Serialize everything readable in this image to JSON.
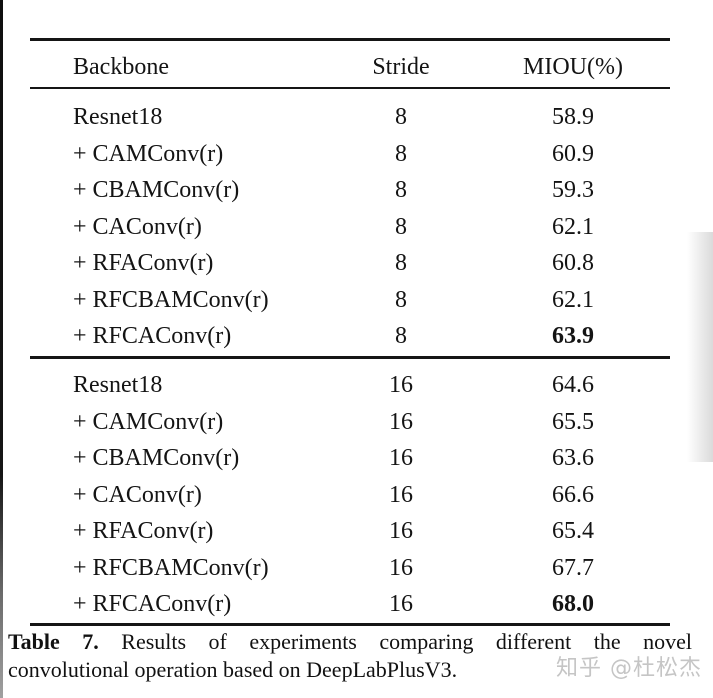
{
  "table": {
    "headers": {
      "backbone": "Backbone",
      "stride": "Stride",
      "miou": "MIOU(%)"
    },
    "groups": [
      {
        "rows": [
          {
            "backbone": "Resnet18",
            "stride": "8",
            "miou": "58.9",
            "best": false
          },
          {
            "backbone": "+ CAMConv(r)",
            "stride": "8",
            "miou": "60.9",
            "best": false
          },
          {
            "backbone": "+ CBAMConv(r)",
            "stride": "8",
            "miou": "59.3",
            "best": false
          },
          {
            "backbone": "+ CAConv(r)",
            "stride": "8",
            "miou": "62.1",
            "best": false
          },
          {
            "backbone": "+ RFAConv(r)",
            "stride": "8",
            "miou": "60.8",
            "best": false
          },
          {
            "backbone": "+ RFCBAMConv(r)",
            "stride": "8",
            "miou": "62.1",
            "best": false
          },
          {
            "backbone": "+ RFCAConv(r)",
            "stride": "8",
            "miou": "63.9",
            "best": true
          }
        ]
      },
      {
        "rows": [
          {
            "backbone": "Resnet18",
            "stride": "16",
            "miou": "64.6",
            "best": false
          },
          {
            "backbone": "+ CAMConv(r)",
            "stride": "16",
            "miou": "65.5",
            "best": false
          },
          {
            "backbone": "+ CBAMConv(r)",
            "stride": "16",
            "miou": "63.6",
            "best": false
          },
          {
            "backbone": "+ CAConv(r)",
            "stride": "16",
            "miou": "66.6",
            "best": false
          },
          {
            "backbone": "+ RFAConv(r)",
            "stride": "16",
            "miou": "65.4",
            "best": false
          },
          {
            "backbone": "+ RFCBAMConv(r)",
            "stride": "16",
            "miou": "67.7",
            "best": false
          },
          {
            "backbone": "+ RFCAConv(r)",
            "stride": "16",
            "miou": "68.0",
            "best": true
          }
        ]
      }
    ]
  },
  "caption": {
    "label": "Table 7.",
    "text_line1": "Results of experiments comparing different the novel",
    "text_line2": "convolutional operation based on DeepLabPlusV3."
  },
  "watermark": {
    "text": "知乎 @杜松杰"
  },
  "colors": {
    "text": "#141414",
    "rule": "#151515",
    "watermark": "#c5c5c5",
    "background": "#ffffff"
  }
}
